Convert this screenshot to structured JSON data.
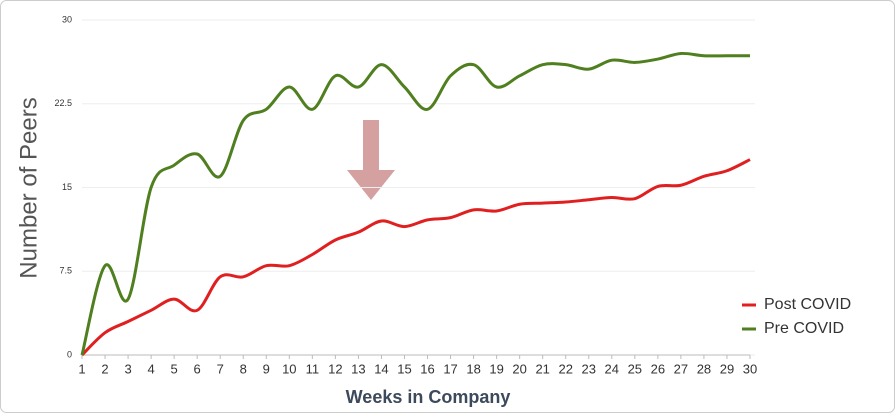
{
  "chart_data": {
    "type": "line",
    "x_label": "Weeks in Company",
    "y_label": "Number of Peers",
    "x": [
      1,
      2,
      3,
      4,
      5,
      6,
      7,
      8,
      9,
      10,
      11,
      12,
      13,
      14,
      15,
      16,
      17,
      18,
      19,
      20,
      21,
      22,
      23,
      24,
      25,
      26,
      27,
      28,
      29,
      30
    ],
    "series": [
      {
        "name": "Post COVID",
        "color": "#e02020",
        "values": [
          0,
          2,
          3,
          4,
          5,
          4,
          7,
          7,
          8,
          8,
          9,
          10.3,
          11,
          12,
          11.5,
          12.1,
          12.3,
          13,
          12.9,
          13.5,
          13.6,
          13.7,
          13.9,
          14.1,
          14,
          15.1,
          15.2,
          16,
          16.5,
          17.5
        ]
      },
      {
        "name": "Pre COVID",
        "color": "#4f7f1f",
        "values": [
          0,
          8,
          5,
          15,
          17,
          18,
          16,
          21,
          22,
          24,
          22,
          25,
          24,
          26,
          24,
          22,
          25,
          26,
          24,
          25,
          26,
          26,
          25.6,
          26.4,
          26.2,
          26.5,
          27,
          26.8,
          26.8,
          26.8
        ]
      }
    ],
    "xlim": [
      1,
      30
    ],
    "xticks": [
      1,
      2,
      3,
      4,
      5,
      6,
      7,
      8,
      9,
      10,
      11,
      12,
      13,
      14,
      15,
      16,
      17,
      18,
      19,
      20,
      21,
      22,
      23,
      24,
      25,
      26,
      27,
      28,
      29,
      30
    ],
    "ylim": [
      0,
      30
    ],
    "yticks": [
      0,
      7.5,
      15,
      22.5,
      30
    ],
    "grid": true,
    "legend": "bottom-right"
  }
}
